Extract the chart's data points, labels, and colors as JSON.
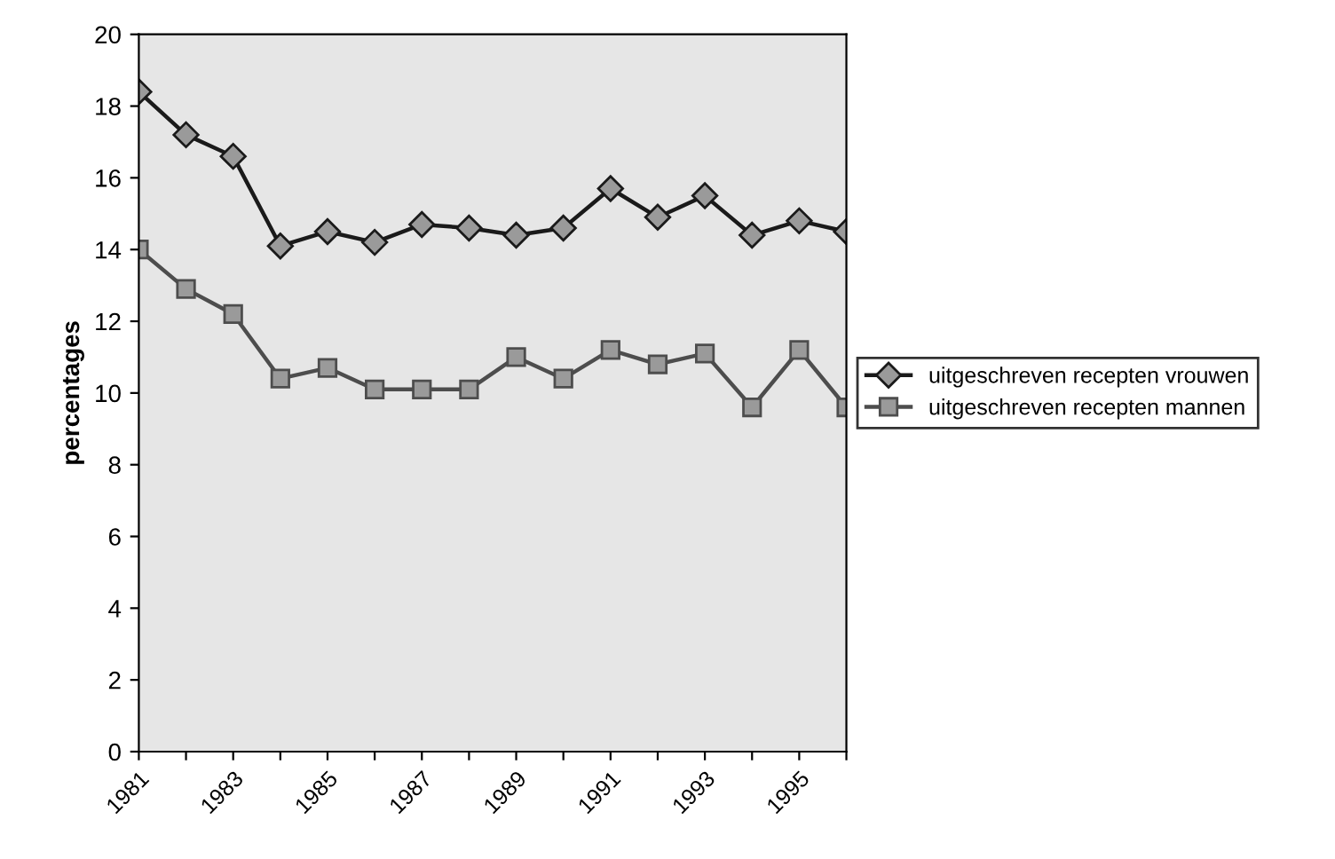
{
  "chart_data": {
    "type": "line",
    "ylabel": "percentages",
    "categories": [
      "1981",
      null,
      "1983",
      null,
      "1985",
      null,
      "1987",
      null,
      "1989",
      null,
      "1991",
      null,
      "1993",
      null,
      "1995",
      null
    ],
    "series": [
      {
        "name": "uitgeschreven recepten vrouwen",
        "color": "#1a1a1a",
        "marker": "diamond",
        "values": [
          18.4,
          17.2,
          16.6,
          14.1,
          14.5,
          14.2,
          14.7,
          14.6,
          14.4,
          14.6,
          15.7,
          14.9,
          15.5,
          14.4,
          14.8,
          14.5
        ]
      },
      {
        "name": "uitgeschreven recepten mannen",
        "color": "#4d4d4d",
        "marker": "square",
        "values": [
          14.0,
          12.9,
          12.2,
          10.4,
          10.7,
          10.1,
          10.1,
          10.1,
          11.0,
          10.4,
          11.2,
          10.8,
          11.1,
          9.6,
          11.2,
          9.6
        ]
      }
    ],
    "ylim": [
      0,
      20
    ],
    "yticks": [
      0,
      2,
      4,
      6,
      8,
      10,
      12,
      14,
      16,
      18,
      20
    ],
    "grid": false,
    "legend": "right",
    "line_style": "solid"
  }
}
